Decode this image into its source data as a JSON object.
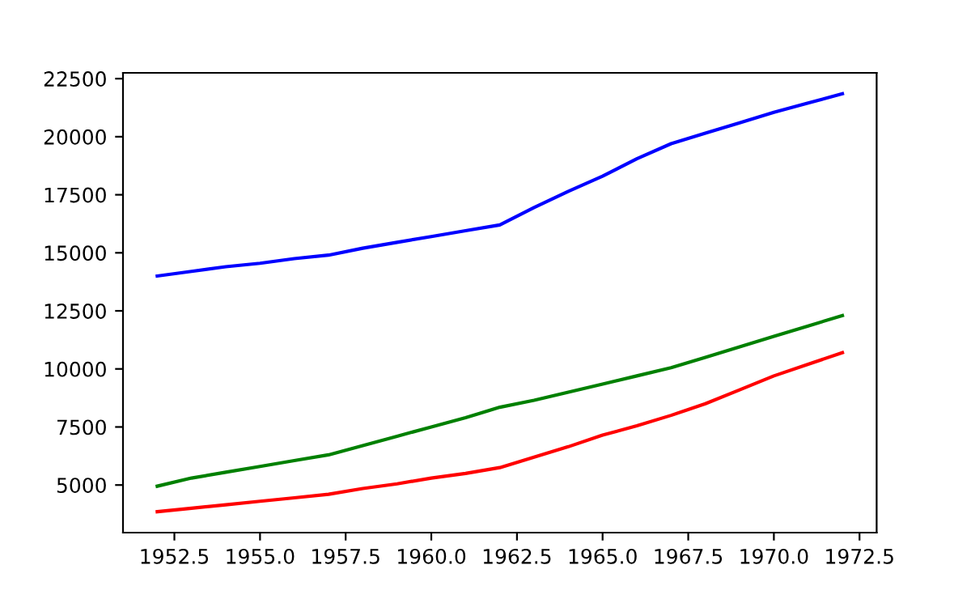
{
  "chart_data": {
    "type": "line",
    "x": [
      1952,
      1953,
      1954,
      1955,
      1956,
      1957,
      1958,
      1959,
      1960,
      1961,
      1962,
      1963,
      1964,
      1965,
      1966,
      1967,
      1968,
      1969,
      1970,
      1971,
      1972
    ],
    "series": [
      {
        "color": "#0000ff",
        "values": [
          14000,
          14200,
          14400,
          14550,
          14750,
          14900,
          15200,
          15450,
          15700,
          15950,
          16200,
          16950,
          17650,
          18300,
          19050,
          19700,
          20150,
          20600,
          21050,
          21450,
          21850
        ]
      },
      {
        "color": "#008000",
        "values": [
          4950,
          5300,
          5550,
          5800,
          6050,
          6300,
          6700,
          7100,
          7500,
          7900,
          8350,
          8650,
          9000,
          9350,
          9700,
          10050,
          10500,
          10950,
          11400,
          11850,
          12300
        ]
      },
      {
        "color": "#ff0000",
        "values": [
          3850,
          4000,
          4150,
          4300,
          4450,
          4600,
          4850,
          5050,
          5300,
          5500,
          5750,
          6200,
          6650,
          7150,
          7550,
          8000,
          8500,
          9100,
          9700,
          10200,
          10700
        ]
      }
    ],
    "xlim": [
      1951,
      1973
    ],
    "ylim": [
      2950,
      22750
    ],
    "xticks": [
      {
        "value": 1952.5,
        "label": "1952.5"
      },
      {
        "value": 1955,
        "label": "1955.0"
      },
      {
        "value": 1957.5,
        "label": "1957.5"
      },
      {
        "value": 1960,
        "label": "1960.0"
      },
      {
        "value": 1962.5,
        "label": "1962.5"
      },
      {
        "value": 1965,
        "label": "1965.0"
      },
      {
        "value": 1967.5,
        "label": "1967.5"
      },
      {
        "value": 1970,
        "label": "1970.0"
      },
      {
        "value": 1972.5,
        "label": "1972.5"
      }
    ],
    "yticks": [
      5000,
      7500,
      10000,
      12500,
      15000,
      17500,
      20000,
      22500
    ],
    "grid": false,
    "legend": false,
    "marker": "none",
    "line_style": "solid"
  }
}
